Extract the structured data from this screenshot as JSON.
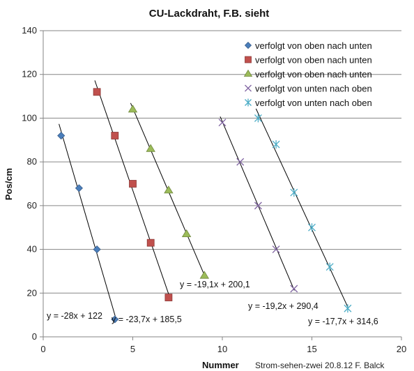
{
  "chart_data": {
    "type": "scatter",
    "title": "CU-Lackdraht, F.B. sieht",
    "xlabel": "Nummer",
    "ylabel": "Pos/cm",
    "credit": "Strom-sehen-zwei  20.8.12 F. Balck",
    "xlim": [
      0,
      20
    ],
    "ylim": [
      0,
      140
    ],
    "xticks": [
      0,
      5,
      10,
      15,
      20
    ],
    "yticks": [
      0,
      20,
      40,
      60,
      80,
      100,
      120,
      140
    ],
    "grid": "horizontal",
    "legend_position": "top-right",
    "series": [
      {
        "name": "verfolgt von oben nach unten",
        "marker": "diamond",
        "color": "#4a7ebb",
        "points": [
          [
            1,
            92
          ],
          [
            2,
            68
          ],
          [
            3,
            40
          ],
          [
            4,
            8
          ]
        ],
        "trendline": {
          "slope": -28,
          "intercept": 122,
          "x_range": [
            1,
            4
          ],
          "label": "y = -28x + 122"
        }
      },
      {
        "name": "verfolgt von oben nach unten",
        "marker": "square",
        "color": "#c0504d",
        "points": [
          [
            3,
            112
          ],
          [
            4,
            92
          ],
          [
            5,
            70
          ],
          [
            6,
            43
          ],
          [
            7,
            18
          ]
        ],
        "trendline": {
          "slope": -23.7,
          "intercept": 185.5,
          "x_range": [
            3,
            7
          ],
          "label": "y = -23,7x + 185,5"
        }
      },
      {
        "name": "verfolgt von oben nach unten",
        "marker": "triangle",
        "color": "#9bbb59",
        "points": [
          [
            5,
            104
          ],
          [
            6,
            86
          ],
          [
            7,
            67
          ],
          [
            8,
            47
          ],
          [
            9,
            28
          ]
        ],
        "trendline": {
          "slope": -19.1,
          "intercept": 200.1,
          "x_range": [
            5,
            9
          ],
          "label": "y = -19,1x + 200,1"
        }
      },
      {
        "name": "verfolgt von unten nach oben",
        "marker": "x",
        "color": "#8064a2",
        "points": [
          [
            10,
            98
          ],
          [
            11,
            80
          ],
          [
            12,
            60
          ],
          [
            13,
            40
          ],
          [
            14,
            22
          ]
        ],
        "trendline": {
          "slope": -19.2,
          "intercept": 290.4,
          "x_range": [
            10,
            14
          ],
          "label": "y = -19,2x + 290,4"
        }
      },
      {
        "name": "verfolgt von unten nach oben",
        "marker": "star",
        "color": "#4bacc6",
        "points": [
          [
            12,
            100
          ],
          [
            13,
            88
          ],
          [
            14,
            66
          ],
          [
            15,
            50
          ],
          [
            16,
            32
          ],
          [
            17,
            13
          ]
        ],
        "trendline": {
          "slope": -17.7,
          "intercept": 314.6,
          "x_range": [
            12,
            17
          ],
          "label": "y = -17,7x + 314,6"
        }
      }
    ]
  }
}
